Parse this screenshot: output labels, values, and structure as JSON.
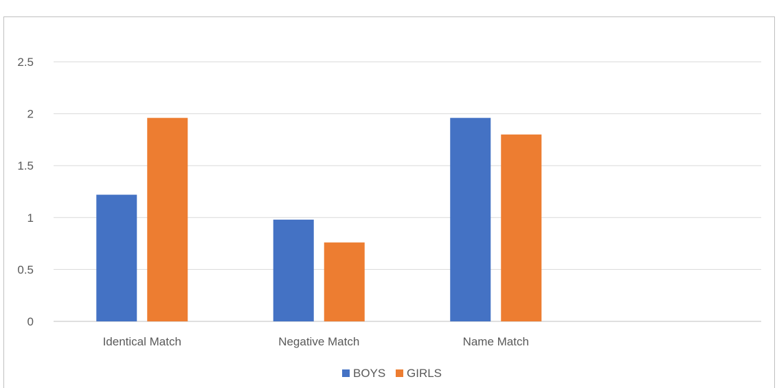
{
  "chart_data": {
    "type": "bar",
    "title": "",
    "categories": [
      "Identical Match",
      "Negative Match",
      "Name Match",
      ""
    ],
    "series": [
      {
        "name": "BOYS",
        "color": "#4472c4",
        "values": [
          1.22,
          0.98,
          1.96,
          null
        ]
      },
      {
        "name": "GIRLS",
        "color": "#ed7d31",
        "values": [
          1.96,
          0.76,
          1.8,
          null
        ]
      }
    ],
    "yticks": [
      "0",
      "0.5",
      "1",
      "1.5",
      "2",
      "2.5"
    ],
    "ylim": [
      0,
      2.5
    ],
    "grid": true,
    "legend_position": "bottom"
  }
}
